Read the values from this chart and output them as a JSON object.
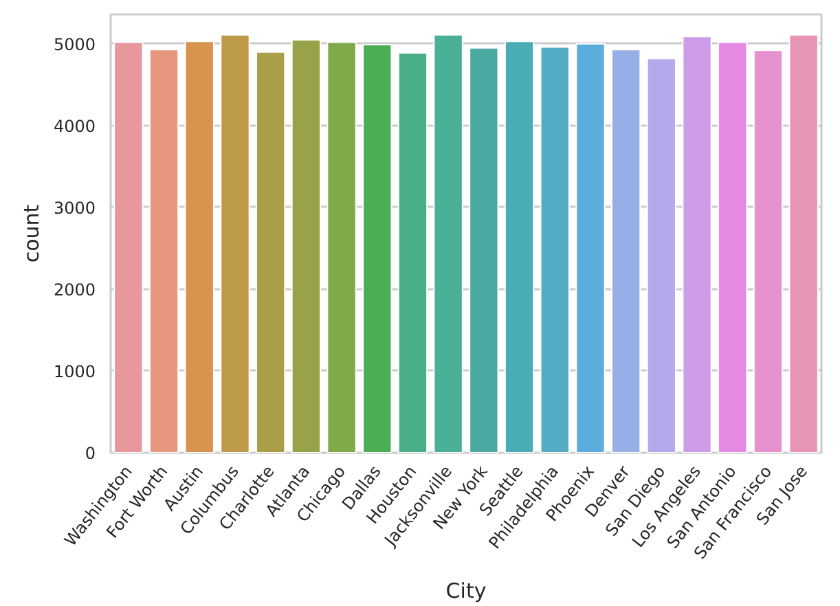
{
  "chart_data": {
    "type": "bar",
    "xlabel": "City",
    "ylabel": "count",
    "categories": [
      "Washington",
      "Fort Worth",
      "Austin",
      "Columbus",
      "Charlotte",
      "Atlanta",
      "Chicago",
      "Dallas",
      "Houston",
      "Jacksonville",
      "New York",
      "Seattle",
      "Philadelphia",
      "Phoenix",
      "Denver",
      "San Diego",
      "Los Angeles",
      "San Antonio",
      "San Francisco",
      "San Jose"
    ],
    "values": [
      5020,
      4930,
      5030,
      5110,
      4900,
      5050,
      5020,
      4990,
      4890,
      5110,
      4950,
      5030,
      4960,
      5000,
      4930,
      4820,
      5090,
      5020,
      4920,
      5110
    ],
    "colors": [
      "#e8979c",
      "#e8977f",
      "#d8934f",
      "#bc9a47",
      "#aa9f48",
      "#98a248",
      "#80a948",
      "#4aae54",
      "#4aaf86",
      "#4aaf97",
      "#4aa9a1",
      "#4aadb6",
      "#51acc4",
      "#5aaddd",
      "#96afe6",
      "#b6a8ec",
      "#cd9be8",
      "#e58ae2",
      "#e690ce",
      "#e894b7"
    ],
    "ylim": [
      0,
      5360
    ],
    "yticks": [
      0,
      1000,
      2000,
      3000,
      4000,
      5000
    ],
    "grid": "y"
  }
}
